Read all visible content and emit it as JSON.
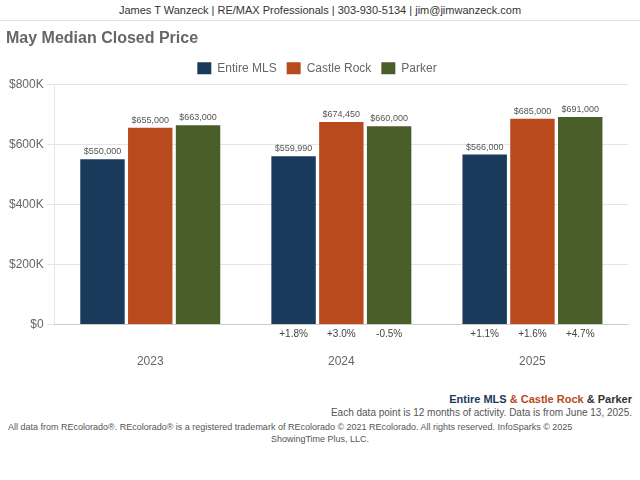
{
  "chart_data": {
    "type": "bar",
    "title": "May Median Closed Price",
    "header": "James T Wanzeck | RE/MAX Professionals | 303-930-5134 | jim@jimwanzeck.com",
    "categories": [
      "2023",
      "2024",
      "2025"
    ],
    "series": [
      {
        "name": "Entire MLS",
        "color": "#1a3a5c",
        "values": [
          550000,
          559990,
          566000
        ],
        "value_labels": [
          "$550,000",
          "$559,990",
          "$566,000"
        ],
        "change_labels": [
          null,
          "+1.8%",
          "+1.1%"
        ]
      },
      {
        "name": "Castle Rock",
        "color": "#b84a1e",
        "values": [
          655000,
          674450,
          685000
        ],
        "value_labels": [
          "$655,000",
          "$674,450",
          "$685,000"
        ],
        "change_labels": [
          null,
          "+3.0%",
          "+1.6%"
        ]
      },
      {
        "name": "Parker",
        "color": "#4a5e2a",
        "values": [
          663000,
          660000,
          691000
        ],
        "value_labels": [
          "$663,000",
          "$660,000",
          "$691,000"
        ],
        "change_labels": [
          null,
          "-0.5%",
          "+4.7%"
        ]
      }
    ],
    "ylim": [
      0,
      800000
    ],
    "yticks": [
      {
        "value": 0,
        "label": "$0"
      },
      {
        "value": 200000,
        "label": "$200K"
      },
      {
        "value": 400000,
        "label": "$400K"
      },
      {
        "value": 600000,
        "label": "$600K"
      },
      {
        "value": 800000,
        "label": "$800K"
      }
    ],
    "grid": true,
    "legend": "top",
    "data_labels": true,
    "annotations": [
      {
        "text": "Entire MLS",
        "color": "#1a3a5c"
      },
      {
        "text": " & Castle Rock",
        "color": "#b84a1e"
      },
      {
        "text": " & Parker",
        "color": "#333333"
      }
    ],
    "notes": [
      "Each data point is 12 months of activity. Data is from June 13, 2025.",
      "All data from REcolorado®. REcolorado® is a registered trademark of REcolorado © 2021 REcolorado. All rights reserved. InfoSparks © 2025",
      "ShowingTime Plus, LLC."
    ]
  }
}
